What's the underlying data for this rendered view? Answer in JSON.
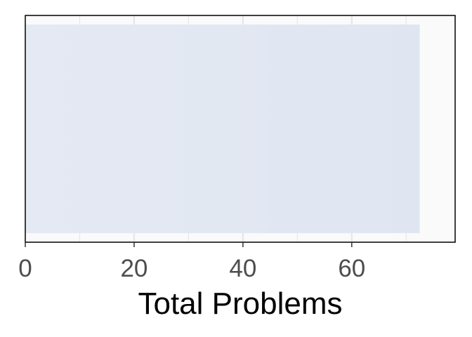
{
  "chart_data": {
    "type": "bar",
    "orientation": "horizontal",
    "categories": [
      ""
    ],
    "values": [
      72.5
    ],
    "title": "",
    "xlabel": "Total Problems",
    "ylabel": "",
    "xlim": [
      0,
      79
    ],
    "x_ticks": [
      0,
      20,
      40,
      60
    ],
    "x_tick_labels": [
      "0",
      "20",
      "40",
      "60"
    ],
    "grid": true,
    "legend": "none",
    "colors": {
      "bar_left": "#e5e9f3",
      "bar_right": "#dfe6f2",
      "panel_background": "#fafafa",
      "grid": "#e6e6e6",
      "border": "#000000"
    }
  }
}
